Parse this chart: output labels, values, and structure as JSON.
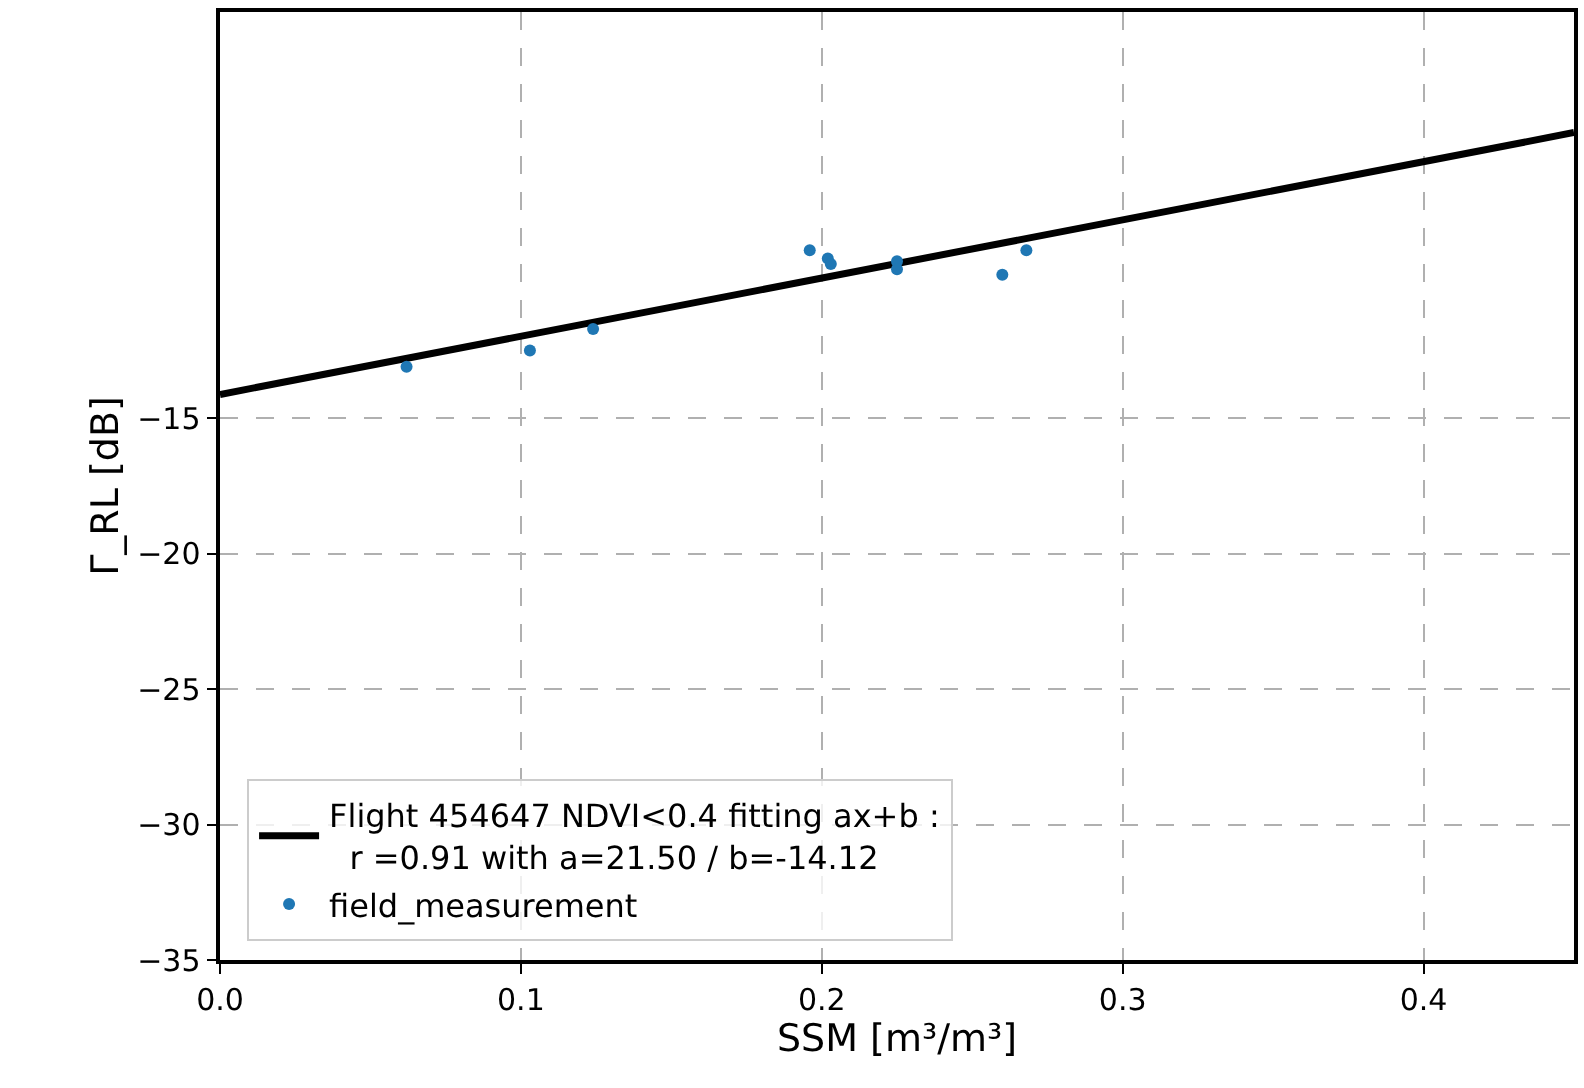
{
  "chart_data": {
    "type": "scatter",
    "xlabel": "SSM [m³/m³]",
    "ylabel": "Γ_RL [dB]",
    "xlim": [
      0,
      0.45
    ],
    "xticks": [
      {
        "value": 0,
        "label": "0.0"
      },
      0.1,
      0.2,
      0.3,
      0.4
    ],
    "ylim": [
      -35,
      0
    ],
    "yticks": [
      -35,
      -30,
      -25,
      -20,
      -15
    ],
    "grid": true,
    "legend": "bottom left",
    "series": [
      {
        "name": "Flight 454647 NDVI<0.4 fitting ax+b :\n  r =0.91 with a=21.50 / b=-14.12",
        "type": "line",
        "color": "#000000",
        "marker": "none",
        "line_style": "solid",
        "x": [
          0,
          0.45
        ],
        "values": [
          -14.12,
          -4.45
        ]
      },
      {
        "name": "field_measurement",
        "color": "#1f77b4",
        "marker": "circle",
        "x": [
          0.062,
          0.103,
          0.124,
          0.196,
          0.202,
          0.203,
          0.225,
          0.225,
          0.26,
          0.268
        ],
        "values": [
          -13.1,
          -12.5,
          -11.7,
          -8.8,
          -9.1,
          -9.3,
          -9.2,
          -9.5,
          -9.7,
          -8.8
        ]
      }
    ]
  }
}
